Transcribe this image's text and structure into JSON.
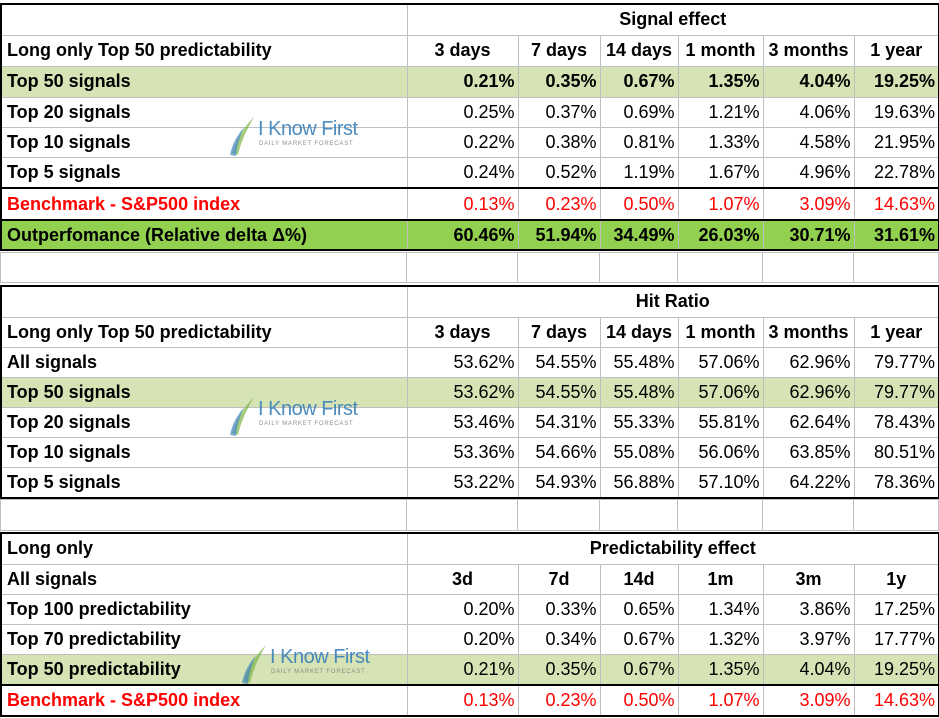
{
  "table1": {
    "group_header": "Signal effect",
    "label_header": "Long only Top 50 predictability",
    "columns": [
      "3 days",
      "7 days",
      "14 days",
      "1 month",
      "3 months",
      "1 year"
    ],
    "rows": [
      {
        "label": "Top 50 signals",
        "values": [
          "0.21%",
          "0.35%",
          "0.67%",
          "1.35%",
          "4.04%",
          "19.25%"
        ]
      },
      {
        "label": "Top 20 signals",
        "values": [
          "0.25%",
          "0.37%",
          "0.69%",
          "1.21%",
          "4.06%",
          "19.63%"
        ]
      },
      {
        "label": "Top 10 signals",
        "values": [
          "0.22%",
          "0.38%",
          "0.81%",
          "1.33%",
          "4.58%",
          "21.95%"
        ]
      },
      {
        "label": "Top 5 signals",
        "values": [
          "0.24%",
          "0.52%",
          "1.19%",
          "1.67%",
          "4.96%",
          "22.78%"
        ]
      },
      {
        "label": "Benchmark - S&P500 index",
        "values": [
          "0.13%",
          "0.23%",
          "0.50%",
          "1.07%",
          "3.09%",
          "14.63%"
        ]
      },
      {
        "label": "Outperfomance (Relative delta Δ%)",
        "values": [
          "60.46%",
          "51.94%",
          "34.49%",
          "26.03%",
          "30.71%",
          "31.61%"
        ]
      }
    ]
  },
  "table2": {
    "group_header": "Hit Ratio",
    "label_header": "Long only Top 50 predictability",
    "columns": [
      "3 days",
      "7 days",
      "14 days",
      "1 month",
      "3 months",
      "1 year"
    ],
    "rows": [
      {
        "label": "All signals",
        "values": [
          "53.62%",
          "54.55%",
          "55.48%",
          "57.06%",
          "62.96%",
          "79.77%"
        ]
      },
      {
        "label": "Top 50 signals",
        "values": [
          "53.62%",
          "54.55%",
          "55.48%",
          "57.06%",
          "62.96%",
          "79.77%"
        ]
      },
      {
        "label": "Top 20 signals",
        "values": [
          "53.46%",
          "54.31%",
          "55.33%",
          "55.81%",
          "62.64%",
          "78.43%"
        ]
      },
      {
        "label": "Top 10 signals",
        "values": [
          "53.36%",
          "54.66%",
          "55.08%",
          "56.06%",
          "63.85%",
          "80.51%"
        ]
      },
      {
        "label": "Top 5 signals",
        "values": [
          "53.22%",
          "54.93%",
          "56.88%",
          "57.10%",
          "64.22%",
          "78.36%"
        ]
      }
    ]
  },
  "table3": {
    "top_label": "Long only",
    "group_header": "Predictability effect",
    "label_header": "All signals",
    "columns": [
      "3d",
      "7d",
      "14d",
      "1m",
      "3m",
      "1y"
    ],
    "rows": [
      {
        "label": "Top 100 predictability",
        "values": [
          "0.20%",
          "0.33%",
          "0.65%",
          "1.34%",
          "3.86%",
          "17.25%"
        ]
      },
      {
        "label": "Top 70 predictability",
        "values": [
          "0.20%",
          "0.34%",
          "0.67%",
          "1.32%",
          "3.97%",
          "17.77%"
        ]
      },
      {
        "label": "Top 50 predictability",
        "values": [
          "0.21%",
          "0.35%",
          "0.67%",
          "1.35%",
          "4.04%",
          "19.25%"
        ]
      },
      {
        "label": "Benchmark - S&P500 index",
        "values": [
          "0.13%",
          "0.23%",
          "0.50%",
          "1.07%",
          "3.09%",
          "14.63%"
        ]
      }
    ]
  },
  "watermark": {
    "brand": "I Know First",
    "tagline": "DAILY MARKET FORECAST",
    "colors": {
      "blue": "#2f7ab8",
      "green": "#7cb342"
    }
  },
  "colors": {
    "light_green_row": "#d6e4b5",
    "green_row": "#92d050",
    "benchmark_red": "#ff0000"
  }
}
